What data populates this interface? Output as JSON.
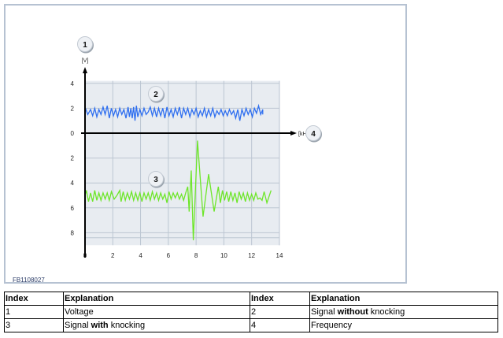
{
  "figure_id": "FB1108027",
  "chart_data": {
    "type": "line",
    "xlabel": "[kHz]",
    "ylabel": "[V]",
    "xlim": [
      0,
      14
    ],
    "ylim": [
      -9,
      4
    ],
    "x_ticks": [
      "0",
      "2",
      "4",
      "6",
      "8",
      "10",
      "12",
      "14"
    ],
    "y_ticks": [
      {
        "value": 4,
        "label": "4"
      },
      {
        "value": 2,
        "label": "2"
      },
      {
        "value": 0,
        "label": "0"
      },
      {
        "value": -2,
        "label": "2"
      },
      {
        "value": -4,
        "label": "4"
      },
      {
        "value": -6,
        "label": "6"
      },
      {
        "value": -8,
        "label": "8"
      }
    ],
    "grid": true,
    "callouts": [
      {
        "label": "1",
        "target": "y-axis"
      },
      {
        "label": "2",
        "target": "blue-series"
      },
      {
        "label": "3",
        "target": "green-series"
      },
      {
        "label": "4",
        "target": "x-axis"
      }
    ],
    "series": [
      {
        "color": "#2f6ff0",
        "points": [
          [
            0,
            2.1
          ],
          [
            0.2,
            1.5
          ],
          [
            0.4,
            1.9
          ],
          [
            0.55,
            1.4
          ],
          [
            0.7,
            2.0
          ],
          [
            0.85,
            1.3
          ],
          [
            1.0,
            1.9
          ],
          [
            1.15,
            1.5
          ],
          [
            1.3,
            2.1
          ],
          [
            1.45,
            1.5
          ],
          [
            1.6,
            2.2
          ],
          [
            1.75,
            1.2
          ],
          [
            1.9,
            2.0
          ],
          [
            2.05,
            1.4
          ],
          [
            2.2,
            1.9
          ],
          [
            2.35,
            1.3
          ],
          [
            2.5,
            2.0
          ],
          [
            2.65,
            1.5
          ],
          [
            2.8,
            1.9
          ],
          [
            2.95,
            1.2
          ],
          [
            3.1,
            2.1
          ],
          [
            3.2,
            1.3
          ],
          [
            3.3,
            2.0
          ],
          [
            3.4,
            1.2
          ],
          [
            3.5,
            2.1
          ],
          [
            3.6,
            1.0
          ],
          [
            3.7,
            2.2
          ],
          [
            3.8,
            1.3
          ],
          [
            3.95,
            1.9
          ],
          [
            4.1,
            1.4
          ],
          [
            4.25,
            2.0
          ],
          [
            4.4,
            1.5
          ],
          [
            4.55,
            1.7
          ],
          [
            4.7,
            2.1
          ],
          [
            4.85,
            1.4
          ],
          [
            5.0,
            2.0
          ],
          [
            5.15,
            1.3
          ],
          [
            5.3,
            2.0
          ],
          [
            5.45,
            1.4
          ],
          [
            5.6,
            2.0
          ],
          [
            5.75,
            1.2
          ],
          [
            5.9,
            2.1
          ],
          [
            6.05,
            1.4
          ],
          [
            6.2,
            1.9
          ],
          [
            6.35,
            1.3
          ],
          [
            6.5,
            2.0
          ],
          [
            6.65,
            1.5
          ],
          [
            6.8,
            2.1
          ],
          [
            6.95,
            1.2
          ],
          [
            7.1,
            2.0
          ],
          [
            7.25,
            1.5
          ],
          [
            7.4,
            2.0
          ],
          [
            7.55,
            1.3
          ],
          [
            7.7,
            1.9
          ],
          [
            7.85,
            1.5
          ],
          [
            8.0,
            2.0
          ],
          [
            8.15,
            1.3
          ],
          [
            8.3,
            1.8
          ],
          [
            8.45,
            1.4
          ],
          [
            8.6,
            2.0
          ],
          [
            8.75,
            1.3
          ],
          [
            8.9,
            1.9
          ],
          [
            9.05,
            1.4
          ],
          [
            9.2,
            2.0
          ],
          [
            9.35,
            1.3
          ],
          [
            9.5,
            1.8
          ],
          [
            9.65,
            1.5
          ],
          [
            9.8,
            1.9
          ],
          [
            9.95,
            1.4
          ],
          [
            10.1,
            1.8
          ],
          [
            10.25,
            1.4
          ],
          [
            10.4,
            1.9
          ],
          [
            10.55,
            1.5
          ],
          [
            10.7,
            1.8
          ],
          [
            10.85,
            1.2
          ],
          [
            11.0,
            1.9
          ],
          [
            11.15,
            1.0
          ],
          [
            11.3,
            1.9
          ],
          [
            11.45,
            1.4
          ],
          [
            11.6,
            2.0
          ],
          [
            11.75,
            1.5
          ],
          [
            11.9,
            1.9
          ],
          [
            12.05,
            1.3
          ],
          [
            12.2,
            2.0
          ],
          [
            12.35,
            1.6
          ],
          [
            12.5,
            2.2
          ],
          [
            12.65,
            1.5
          ],
          [
            12.8,
            1.9
          ],
          [
            12.8,
            1.5
          ]
        ]
      },
      {
        "color": "#6ee62a",
        "points": [
          [
            0,
            -5.0
          ],
          [
            0.1,
            -4.6
          ],
          [
            0.25,
            -5.5
          ],
          [
            0.4,
            -4.8
          ],
          [
            0.55,
            -5.5
          ],
          [
            0.7,
            -4.6
          ],
          [
            0.85,
            -5.4
          ],
          [
            1.0,
            -4.8
          ],
          [
            1.15,
            -5.4
          ],
          [
            1.3,
            -4.8
          ],
          [
            1.45,
            -5.3
          ],
          [
            1.6,
            -4.8
          ],
          [
            1.75,
            -5.4
          ],
          [
            1.9,
            -4.7
          ],
          [
            2.1,
            -5.3
          ],
          [
            2.3,
            -5.0
          ],
          [
            2.5,
            -4.6
          ],
          [
            2.6,
            -5.5
          ],
          [
            2.75,
            -4.7
          ],
          [
            2.9,
            -5.4
          ],
          [
            3.05,
            -4.8
          ],
          [
            3.2,
            -5.3
          ],
          [
            3.35,
            -4.7
          ],
          [
            3.5,
            -5.4
          ],
          [
            3.65,
            -4.8
          ],
          [
            3.8,
            -5.4
          ],
          [
            3.95,
            -4.8
          ],
          [
            4.1,
            -5.5
          ],
          [
            4.25,
            -4.8
          ],
          [
            4.4,
            -5.3
          ],
          [
            4.55,
            -4.8
          ],
          [
            4.7,
            -5.4
          ],
          [
            4.85,
            -4.7
          ],
          [
            5.0,
            -5.3
          ],
          [
            5.15,
            -4.8
          ],
          [
            5.3,
            -5.4
          ],
          [
            5.45,
            -4.8
          ],
          [
            5.6,
            -5.3
          ],
          [
            5.75,
            -4.9
          ],
          [
            5.9,
            -5.6
          ],
          [
            6.05,
            -4.7
          ],
          [
            6.2,
            -5.3
          ],
          [
            6.35,
            -4.8
          ],
          [
            6.5,
            -5.2
          ],
          [
            6.65,
            -4.8
          ],
          [
            6.8,
            -5.3
          ],
          [
            6.95,
            -4.9
          ],
          [
            7.1,
            -5.4
          ],
          [
            7.25,
            -4.8
          ],
          [
            7.4,
            -4.3
          ],
          [
            7.5,
            -6.3
          ],
          [
            7.65,
            -3.0
          ],
          [
            7.8,
            -8.6
          ],
          [
            8.1,
            -0.6
          ],
          [
            8.5,
            -6.7
          ],
          [
            8.9,
            -3.3
          ],
          [
            9.3,
            -6.3
          ],
          [
            9.6,
            -4.3
          ],
          [
            9.75,
            -5.6
          ],
          [
            9.9,
            -4.6
          ],
          [
            10.05,
            -5.4
          ],
          [
            10.2,
            -4.7
          ],
          [
            10.35,
            -5.5
          ],
          [
            10.5,
            -4.7
          ],
          [
            10.65,
            -5.4
          ],
          [
            10.8,
            -4.8
          ],
          [
            10.95,
            -5.6
          ],
          [
            11.1,
            -4.7
          ],
          [
            11.25,
            -5.3
          ],
          [
            11.4,
            -4.8
          ],
          [
            11.55,
            -5.5
          ],
          [
            11.7,
            -4.8
          ],
          [
            11.85,
            -5.4
          ],
          [
            12.0,
            -4.9
          ],
          [
            12.15,
            -5.4
          ],
          [
            12.3,
            -4.8
          ],
          [
            12.45,
            -5.3
          ],
          [
            12.6,
            -5.2
          ],
          [
            12.75,
            -5.4
          ],
          [
            12.9,
            -4.7
          ],
          [
            13.1,
            -5.6
          ],
          [
            13.4,
            -4.6
          ]
        ]
      }
    ]
  },
  "table": {
    "header": [
      "Index",
      "Explanation",
      "Index",
      "Explanation"
    ],
    "rows": [
      {
        "i1": "1",
        "e1": [
          {
            "t": "Voltage"
          }
        ],
        "i2": "2",
        "e2": [
          {
            "t": "Signal "
          },
          {
            "t": "without",
            "b": true
          },
          {
            "t": " knocking"
          }
        ]
      },
      {
        "i1": "3",
        "e1": [
          {
            "t": "Signal "
          },
          {
            "t": "with",
            "b": true
          },
          {
            "t": " knocking"
          }
        ],
        "i2": "4",
        "e2": [
          {
            "t": "Frequency"
          }
        ]
      }
    ]
  }
}
